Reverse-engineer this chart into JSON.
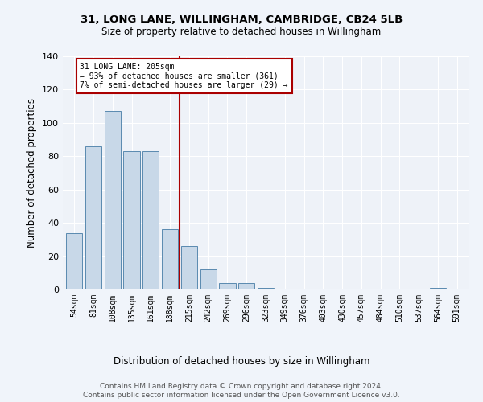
{
  "title": "31, LONG LANE, WILLINGHAM, CAMBRIDGE, CB24 5LB",
  "subtitle": "Size of property relative to detached houses in Willingham",
  "xlabel": "Distribution of detached houses by size in Willingham",
  "ylabel": "Number of detached properties",
  "bin_labels": [
    "54sqm",
    "81sqm",
    "108sqm",
    "135sqm",
    "161sqm",
    "188sqm",
    "215sqm",
    "242sqm",
    "269sqm",
    "296sqm",
    "323sqm",
    "349sqm",
    "376sqm",
    "403sqm",
    "430sqm",
    "457sqm",
    "484sqm",
    "510sqm",
    "537sqm",
    "564sqm",
    "591sqm"
  ],
  "bar_values": [
    34,
    86,
    107,
    83,
    83,
    36,
    26,
    12,
    4,
    4,
    1,
    0,
    0,
    0,
    0,
    0,
    0,
    0,
    0,
    1,
    0
  ],
  "bar_color": "#c8d8e8",
  "bar_edge_color": "#5a8ab0",
  "vline_index": 6,
  "property_line_label": "31 LONG LANE: 205sqm",
  "annotation_line1": "← 93% of detached houses are smaller (361)",
  "annotation_line2": "7% of semi-detached houses are larger (29) →",
  "vline_color": "#aa0000",
  "annotation_box_color": "#aa0000",
  "ylim": [
    0,
    140
  ],
  "yticks": [
    0,
    20,
    40,
    60,
    80,
    100,
    120,
    140
  ],
  "bg_color": "#eef2f8",
  "grid_color": "#ffffff",
  "footer_line1": "Contains HM Land Registry data © Crown copyright and database right 2024.",
  "footer_line2": "Contains public sector information licensed under the Open Government Licence v3.0."
}
